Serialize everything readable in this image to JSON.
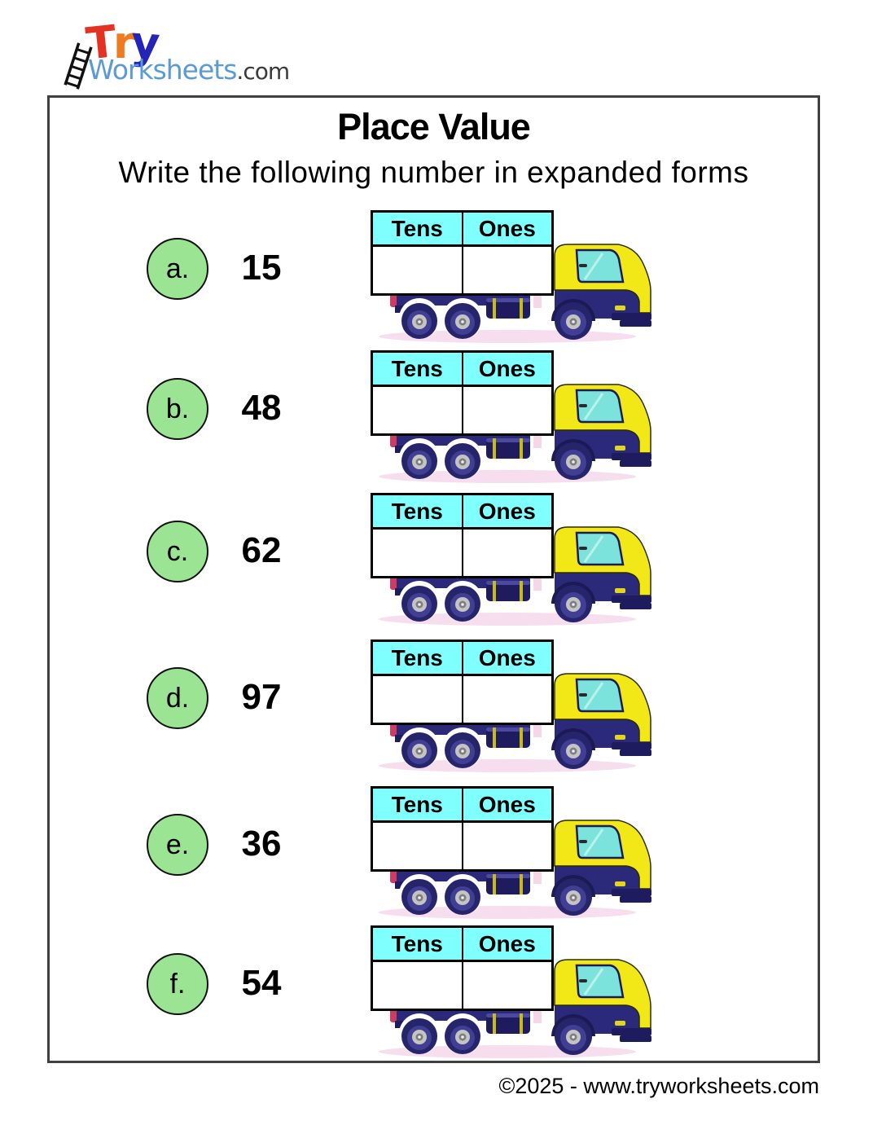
{
  "logo": {
    "try_t": "T",
    "try_r": "r",
    "try_y": "y",
    "worksheets": "Worksheets",
    "dotcom": ".com"
  },
  "worksheet": {
    "title": "Place Value",
    "instruction": "Write the following number in expanded forms",
    "table": {
      "col1": "Tens",
      "col2": "Ones"
    },
    "rows": [
      {
        "letter": "a.",
        "number": "15"
      },
      {
        "letter": "b.",
        "number": "48"
      },
      {
        "letter": "c.",
        "number": "62"
      },
      {
        "letter": "d.",
        "number": "97"
      },
      {
        "letter": "e.",
        "number": "36"
      },
      {
        "letter": "f.",
        "number": "54"
      }
    ]
  },
  "footer": {
    "copyright": "©2025 - www.tryworksheets.com"
  },
  "colors": {
    "header_cyan": "#80FFFF",
    "circle_green": "#9BE493",
    "truck_navy": "#2B2979",
    "truck_yellow": "#F2E818",
    "window_teal": "#7CE3DC",
    "shadow_pink": "#F6DEEE",
    "logo_red": "#E33122",
    "logo_orange": "#F07B1F",
    "logo_blue": "#2424B8",
    "logo_lightblue": "#5B9BD5"
  }
}
